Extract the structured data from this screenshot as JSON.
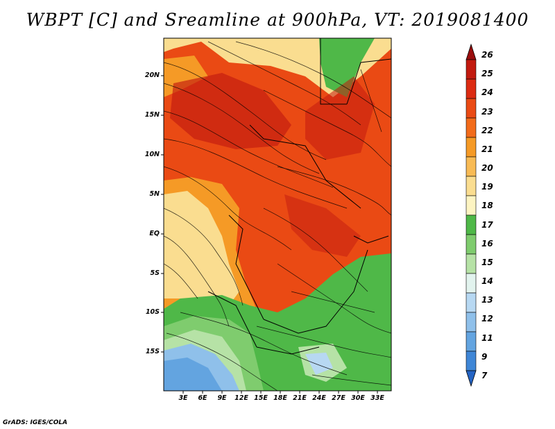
{
  "title": "WBPT [C] and Sreamline at 900hPa, VT: 2019081400",
  "footer": "GrADS: IGES/COLA",
  "map": {
    "lat_labels": [
      "20N",
      "15N",
      "10N",
      "5N",
      "EQ",
      "5S",
      "10S",
      "15S"
    ],
    "lon_labels": [
      "3E",
      "6E",
      "9E",
      "12E",
      "15E",
      "18E",
      "21E",
      "24E",
      "27E",
      "30E",
      "33E"
    ]
  },
  "colorbar": {
    "labels": [
      "26",
      "25",
      "24",
      "23",
      "22",
      "21",
      "20",
      "19",
      "18",
      "17",
      "16",
      "15",
      "14",
      "13",
      "12",
      "11",
      "9",
      "7"
    ],
    "colors": [
      "#9a0d0d",
      "#c21a0f",
      "#dc2b12",
      "#ea4a14",
      "#f26b1a",
      "#f59a26",
      "#f8bb55",
      "#fadd90",
      "#fdf4c2",
      "#4fb848",
      "#7fcc6e",
      "#b6e2a6",
      "#e2f3ee",
      "#b7d8f2",
      "#8fc0ea",
      "#63a4e0",
      "#3f86d6",
      "#2464c4"
    ]
  }
}
